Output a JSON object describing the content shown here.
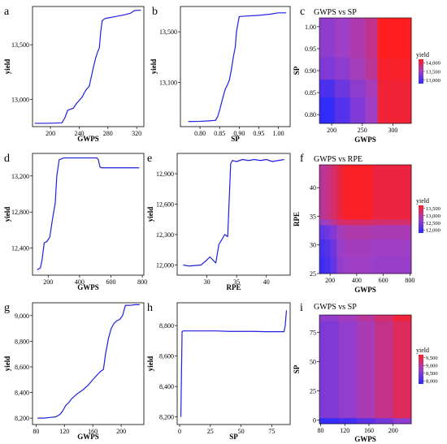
{
  "chart_data": [
    {
      "id": "a",
      "letter": "a",
      "type": "line",
      "xlabel": "GWPS",
      "ylabel": "yield",
      "xlim": [
        175,
        330
      ],
      "ylim": [
        12750,
        13850
      ],
      "xticks": [
        200,
        240,
        280,
        320
      ],
      "xtick_labels": [
        "200",
        "240",
        "280",
        "320"
      ],
      "yticks": [
        13000,
        13500
      ],
      "ytick_labels": [
        "13,000",
        "13,500"
      ],
      "x": [
        178,
        190,
        205,
        216,
        220,
        224,
        232,
        236,
        240,
        244,
        248,
        250,
        254,
        256,
        258,
        260,
        263,
        266,
        268,
        270,
        272,
        276,
        280,
        288,
        296,
        304,
        312,
        316,
        320,
        326
      ],
      "y": [
        12780,
        12780,
        12782,
        12785,
        12830,
        12900,
        12920,
        12960,
        12990,
        13020,
        13070,
        13090,
        13120,
        13180,
        13240,
        13300,
        13380,
        13440,
        13470,
        13620,
        13720,
        13740,
        13745,
        13755,
        13765,
        13775,
        13790,
        13810,
        13815,
        13815
      ]
    },
    {
      "id": "b",
      "letter": "b",
      "type": "line",
      "xlabel": "SP",
      "ylabel": "yield",
      "xlim": [
        0.75,
        1.03
      ],
      "ylim": [
        12750,
        13700
      ],
      "xticks": [
        0.8,
        0.85,
        0.9,
        0.95,
        1.0
      ],
      "xtick_labels": [
        "0.80",
        "0.85",
        "0.90",
        "0.95",
        "1.00"
      ],
      "yticks": [
        13100,
        13500
      ],
      "ytick_labels": [
        "13,100",
        "13,500"
      ],
      "x": [
        0.77,
        0.8,
        0.82,
        0.84,
        0.845,
        0.85,
        0.855,
        0.86,
        0.865,
        0.87,
        0.875,
        0.88,
        0.885,
        0.89,
        0.893,
        0.9,
        0.92,
        0.95,
        0.98,
        1.0,
        1.02
      ],
      "y": [
        12790,
        12792,
        12795,
        12800,
        12830,
        12880,
        12940,
        13000,
        13050,
        13080,
        13120,
        13200,
        13300,
        13380,
        13500,
        13620,
        13625,
        13630,
        13640,
        13650,
        13650
      ]
    },
    {
      "id": "d",
      "letter": "d",
      "type": "line",
      "xlabel": "GWPS",
      "ylabel": "yield",
      "xlim": [
        100,
        810
      ],
      "ylim": [
        12100,
        13450
      ],
      "xticks": [
        200,
        400,
        600,
        800
      ],
      "xtick_labels": [
        "200",
        "400",
        "600",
        "800"
      ],
      "yticks": [
        12400,
        12800,
        13200
      ],
      "ytick_labels": [
        "12,400",
        "12,800",
        "13,200"
      ],
      "x": [
        130,
        150,
        160,
        175,
        190,
        210,
        230,
        245,
        255,
        270,
        300,
        400,
        480,
        510,
        520,
        530,
        540,
        600,
        700,
        780
      ],
      "y": [
        12160,
        12180,
        12260,
        12460,
        12470,
        12520,
        12750,
        12900,
        13200,
        13380,
        13400,
        13400,
        13400,
        13400,
        13380,
        13300,
        13290,
        13290,
        13290,
        13290
      ]
    },
    {
      "id": "e",
      "letter": "e",
      "type": "line",
      "xlabel": "RPE",
      "ylabel": "yield",
      "xlim": [
        25,
        44
      ],
      "ylim": [
        11900,
        13100
      ],
      "xticks": [
        30,
        35,
        40
      ],
      "xtick_labels": [
        "30",
        "35",
        "40"
      ],
      "yticks": [
        12000,
        12300,
        12600,
        12900
      ],
      "ytick_labels": [
        "12,000",
        "12,300",
        "12,600",
        "12,900"
      ],
      "x": [
        26,
        27,
        28,
        29,
        30,
        30.5,
        31,
        31.5,
        32,
        32.5,
        33,
        33.5,
        34,
        34.3,
        35,
        36,
        37,
        38,
        39,
        40,
        41,
        42,
        43
      ],
      "y": [
        12000,
        11990,
        11995,
        12000,
        12050,
        12080,
        12050,
        12020,
        12200,
        12250,
        12300,
        12280,
        13000,
        13030,
        13020,
        13040,
        13030,
        13040,
        13030,
        13040,
        13020,
        13030,
        13040
      ]
    },
    {
      "id": "g",
      "letter": "g",
      "type": "line",
      "xlabel": "GWPS",
      "ylabel": "yield",
      "xlim": [
        75,
        232
      ],
      "ylim": [
        8150,
        9100
      ],
      "xticks": [
        80,
        120,
        160,
        200
      ],
      "xtick_labels": [
        "80",
        "120",
        "160",
        "200"
      ],
      "yticks": [
        8200,
        8400,
        8600,
        8800,
        9000
      ],
      "ytick_labels": [
        "8,200",
        "8,400",
        "8,600",
        "8,800",
        "9,000"
      ],
      "x": [
        82,
        90,
        100,
        108,
        114,
        118,
        122,
        126,
        130,
        138,
        146,
        154,
        160,
        165,
        170,
        175,
        178,
        182,
        186,
        190,
        194,
        198,
        202,
        206,
        212,
        220,
        226
      ],
      "y": [
        8200,
        8200,
        8205,
        8210,
        8230,
        8260,
        8300,
        8320,
        8350,
        8390,
        8420,
        8460,
        8500,
        8530,
        8560,
        8580,
        8700,
        8820,
        8900,
        8940,
        8960,
        8970,
        9000,
        9080,
        9080,
        9085,
        9085
      ]
    },
    {
      "id": "h",
      "letter": "h",
      "type": "line",
      "xlabel": "SP",
      "ylabel": "yield",
      "xlim": [
        -2,
        90
      ],
      "ylim": [
        8150,
        8950
      ],
      "xticks": [
        0,
        25,
        50,
        75
      ],
      "xtick_labels": [
        "0",
        "25",
        "50",
        "75"
      ],
      "yticks": [
        8200,
        8400,
        8600,
        8800
      ],
      "ytick_labels": [
        "8,200",
        "8,400",
        "8,600",
        "8,800"
      ],
      "x": [
        1,
        2,
        3,
        10,
        20,
        30,
        40,
        50,
        60,
        70,
        80,
        85,
        86,
        87
      ],
      "y": [
        8200,
        8760,
        8765,
        8765,
        8765,
        8765,
        8762,
        8762,
        8762,
        8760,
        8760,
        8760,
        8800,
        8900
      ]
    },
    {
      "id": "c",
      "letter": "c",
      "type": "heatmap",
      "title": "GWPS vs SP",
      "xlabel": "GWPS",
      "ylabel": "SP",
      "xlim": [
        180,
        330
      ],
      "ylim": [
        0.78,
        1.02
      ],
      "xticks": [
        200,
        250,
        300
      ],
      "xtick_labels": [
        "200",
        "250",
        "300"
      ],
      "yticks": [
        0.8,
        0.85,
        0.9,
        0.95,
        1.0
      ],
      "ytick_labels": [
        "0.80",
        "0.85",
        "0.90",
        "0.95",
        "1.00"
      ],
      "colorbar": {
        "title": "yield",
        "min": 12800,
        "max": 14200,
        "ticks": [
          13000,
          13500,
          14000
        ],
        "tick_labels": [
          "13,000",
          "13,500",
          "14,000"
        ]
      },
      "x_edges": [
        180,
        205,
        230,
        255,
        275,
        330
      ],
      "y_edges": [
        0.78,
        0.84,
        0.88,
        0.93,
        1.02
      ],
      "z": [
        [
          12850,
          13050,
          13300,
          13500,
          14100
        ],
        [
          13000,
          13200,
          13400,
          13550,
          14100
        ],
        [
          13300,
          13400,
          13550,
          13700,
          14150
        ],
        [
          13400,
          13500,
          13600,
          13750,
          14200
        ]
      ]
    },
    {
      "id": "f",
      "letter": "f",
      "type": "heatmap",
      "title": "GWPS vs RPE",
      "xlabel": "GWPS",
      "ylabel": "RPE",
      "xlim": [
        120,
        810
      ],
      "ylim": [
        25,
        44
      ],
      "xticks": [
        200,
        400,
        600,
        800
      ],
      "xtick_labels": [
        "200",
        "400",
        "600",
        "800"
      ],
      "yticks": [
        25,
        30,
        35,
        40
      ],
      "ytick_labels": [
        "25",
        "30",
        "35",
        "40"
      ],
      "colorbar": {
        "title": "yield",
        "min": 11800,
        "max": 13700,
        "ticks": [
          12000,
          12500,
          13000,
          13500
        ],
        "tick_labels": [
          "12,000",
          "12,500",
          "13,000",
          "13,500"
        ]
      },
      "x_edges": [
        120,
        160,
        200,
        250,
        300,
        520,
        810
      ],
      "y_edges": [
        25,
        28,
        31,
        33.5,
        34.5,
        44
      ],
      "z": [
        [
          11950,
          12050,
          12250,
          12650,
          12750,
          12700
        ],
        [
          12050,
          12150,
          12350,
          12700,
          12800,
          12750
        ],
        [
          12250,
          12350,
          12500,
          12800,
          12900,
          12850
        ],
        [
          12700,
          12800,
          13000,
          13250,
          13300,
          13250
        ],
        [
          13000,
          13100,
          13250,
          13500,
          13650,
          13500
        ]
      ]
    },
    {
      "id": "i",
      "letter": "i",
      "type": "heatmap",
      "title": "GWPS vs SP",
      "xlabel": "GWPS",
      "ylabel": "SP",
      "xlim": [
        78,
        230
      ],
      "ylim": [
        -3,
        90
      ],
      "xticks": [
        80,
        120,
        160,
        200
      ],
      "xtick_labels": [
        "80",
        "120",
        "160",
        "200"
      ],
      "yticks": [
        0,
        25,
        50,
        75
      ],
      "ytick_labels": [
        "0",
        "25",
        "50",
        "75"
      ],
      "colorbar": {
        "title": "yield",
        "min": 7800,
        "max": 9700,
        "ticks": [
          8000,
          8500,
          9000,
          9500
        ],
        "tick_labels": [
          "8,000",
          "8,500",
          "9,000",
          "9,500"
        ]
      },
      "x_edges": [
        78,
        110,
        140,
        170,
        200,
        230
      ],
      "y_edges": [
        -3,
        2,
        85,
        90
      ],
      "z": [
        [
          7900,
          8000,
          8200,
          8400,
          8600
        ],
        [
          8500,
          8650,
          8850,
          9100,
          9350
        ],
        [
          8650,
          8800,
          9000,
          9250,
          9550
        ]
      ]
    }
  ]
}
